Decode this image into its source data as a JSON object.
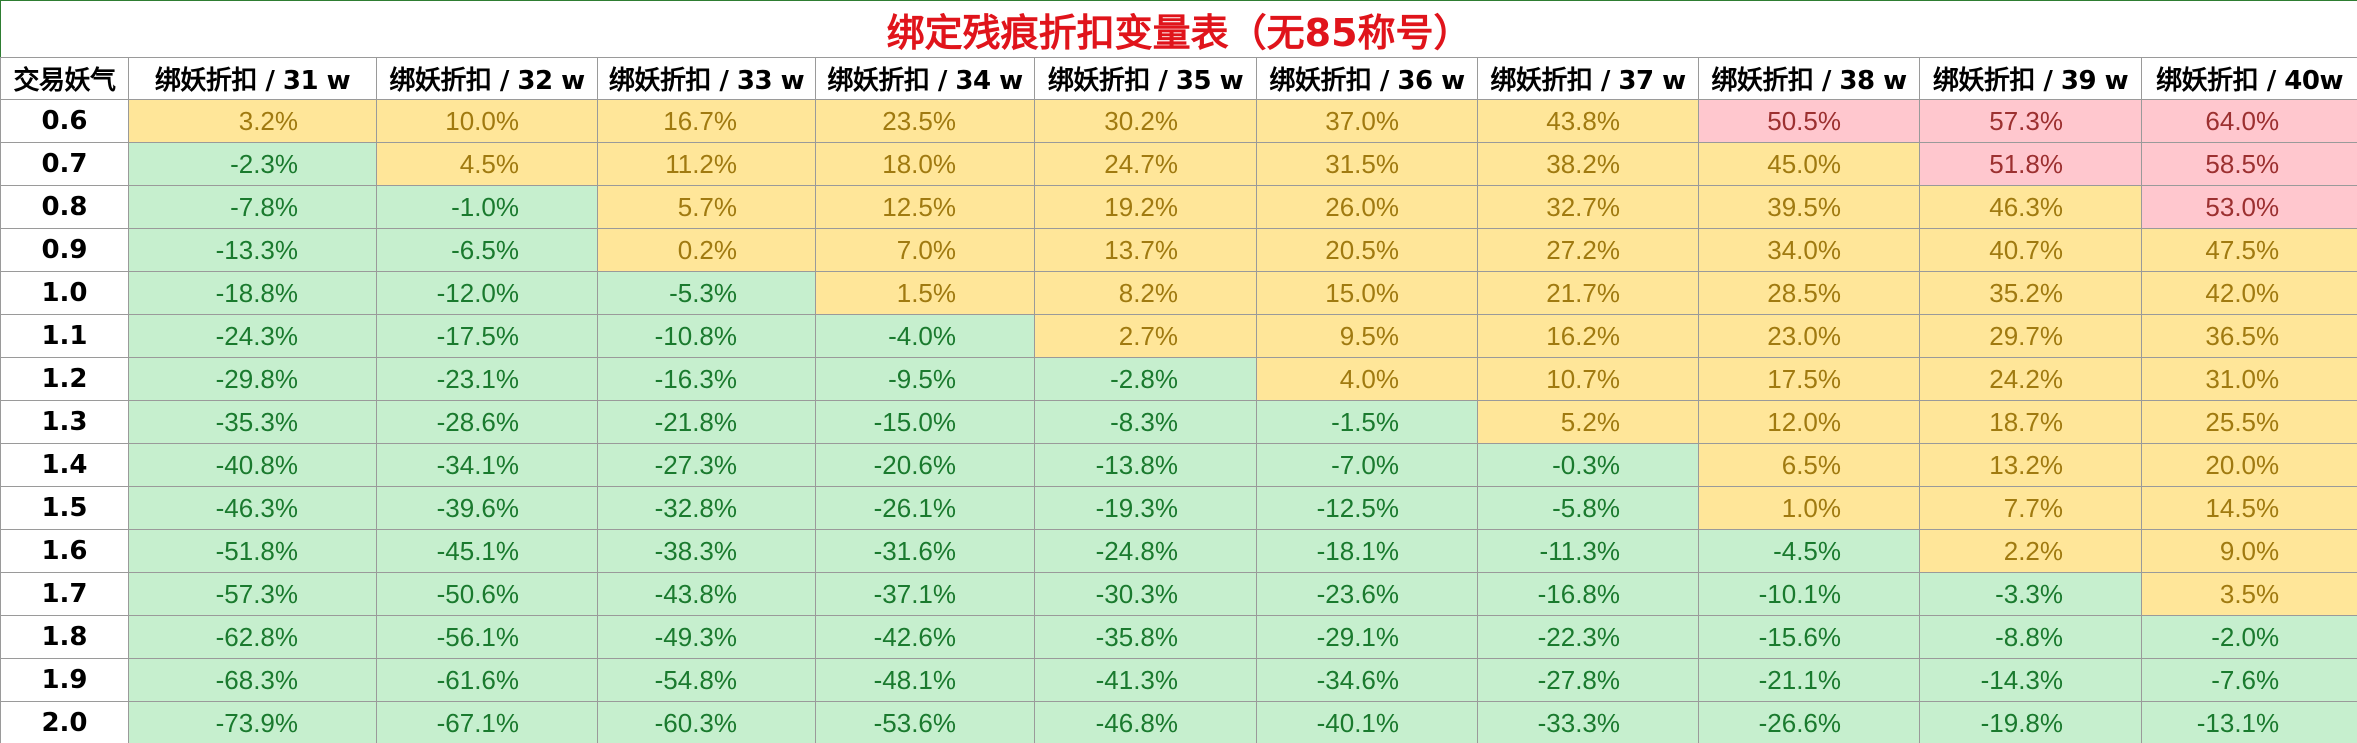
{
  "table": {
    "title": "绑定残痕折扣变量表（无85称号）",
    "header": [
      "交易妖气",
      "绑妖折扣 / 31 w",
      "绑妖折扣 / 32 w",
      "绑妖折扣 / 33 w",
      "绑妖折扣 / 34 w",
      "绑妖折扣 / 35 w",
      "绑妖折扣 / 36 w",
      "绑妖折扣 / 37 w",
      "绑妖折扣 / 38 w",
      "绑妖折扣 / 39 w",
      "绑妖折扣 / 40w"
    ],
    "rows": [
      [
        "0.6",
        "3.2%",
        "10.0%",
        "16.7%",
        "23.5%",
        "30.2%",
        "37.0%",
        "43.8%",
        "50.5%",
        "57.3%",
        "64.0%"
      ],
      [
        "0.7",
        "-2.3%",
        "4.5%",
        "11.2%",
        "18.0%",
        "24.7%",
        "31.5%",
        "38.2%",
        "45.0%",
        "51.8%",
        "58.5%"
      ],
      [
        "0.8",
        "-7.8%",
        "-1.0%",
        "5.7%",
        "12.5%",
        "19.2%",
        "26.0%",
        "32.7%",
        "39.5%",
        "46.3%",
        "53.0%"
      ],
      [
        "0.9",
        "-13.3%",
        "-6.5%",
        "0.2%",
        "7.0%",
        "13.7%",
        "20.5%",
        "27.2%",
        "34.0%",
        "40.7%",
        "47.5%"
      ],
      [
        "1.0",
        "-18.8%",
        "-12.0%",
        "-5.3%",
        "1.5%",
        "8.2%",
        "15.0%",
        "21.7%",
        "28.5%",
        "35.2%",
        "42.0%"
      ],
      [
        "1.1",
        "-24.3%",
        "-17.5%",
        "-10.8%",
        "-4.0%",
        "2.7%",
        "9.5%",
        "16.2%",
        "23.0%",
        "29.7%",
        "36.5%"
      ],
      [
        "1.2",
        "-29.8%",
        "-23.1%",
        "-16.3%",
        "-9.5%",
        "-2.8%",
        "4.0%",
        "10.7%",
        "17.5%",
        "24.2%",
        "31.0%"
      ],
      [
        "1.3",
        "-35.3%",
        "-28.6%",
        "-21.8%",
        "-15.0%",
        "-8.3%",
        "-1.5%",
        "5.2%",
        "12.0%",
        "18.7%",
        "25.5%"
      ],
      [
        "1.4",
        "-40.8%",
        "-34.1%",
        "-27.3%",
        "-20.6%",
        "-13.8%",
        "-7.0%",
        "-0.3%",
        "6.5%",
        "13.2%",
        "20.0%"
      ],
      [
        "1.5",
        "-46.3%",
        "-39.6%",
        "-32.8%",
        "-26.1%",
        "-19.3%",
        "-12.5%",
        "-5.8%",
        "1.0%",
        "7.7%",
        "14.5%"
      ],
      [
        "1.6",
        "-51.8%",
        "-45.1%",
        "-38.3%",
        "-31.6%",
        "-24.8%",
        "-18.1%",
        "-11.3%",
        "-4.5%",
        "2.2%",
        "9.0%"
      ],
      [
        "1.7",
        "-57.3%",
        "-50.6%",
        "-43.8%",
        "-37.1%",
        "-30.3%",
        "-23.6%",
        "-16.8%",
        "-10.1%",
        "-3.3%",
        "3.5%"
      ],
      [
        "1.8",
        "-62.8%",
        "-56.1%",
        "-49.3%",
        "-42.6%",
        "-35.8%",
        "-29.1%",
        "-22.3%",
        "-15.6%",
        "-8.8%",
        "-2.0%"
      ],
      [
        "1.9",
        "-68.3%",
        "-61.6%",
        "-54.8%",
        "-48.1%",
        "-41.3%",
        "-34.6%",
        "-27.8%",
        "-21.1%",
        "-14.3%",
        "-7.6%"
      ],
      [
        "2.0",
        "-73.9%",
        "-67.1%",
        "-60.3%",
        "-53.6%",
        "-46.8%",
        "-40.1%",
        "-33.3%",
        "-26.6%",
        "-19.8%",
        "-13.1%"
      ]
    ]
  }
}
